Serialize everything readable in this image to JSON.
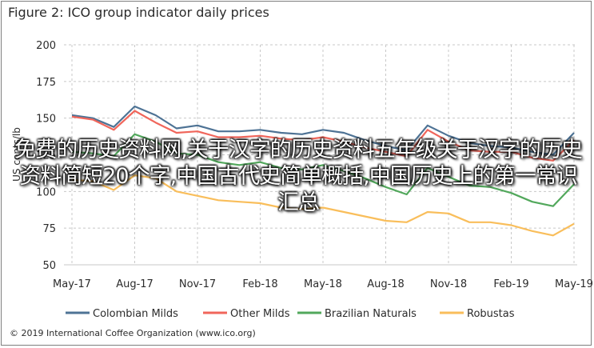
{
  "title": "Figure 2: ICO group indicator daily prices",
  "copyright": "© 2019 International Coffee Organization (www.ico.org)",
  "watermark_text": "免费的历史资料网,关于汉字的历史资料五年级关于汉字的历史资料简短20个字,中国古代史简单概括,中国历史上的第一常识汇总",
  "chart_data": {
    "type": "line",
    "ylabel": "US cents/lb",
    "ylim": [
      50,
      200
    ],
    "yticks": [
      50,
      75,
      100,
      125,
      150,
      175,
      200
    ],
    "x_labels": [
      "May-17",
      "Aug-17",
      "Nov-17",
      "Feb-18",
      "May-18",
      "Aug-18",
      "Nov-18",
      "Feb-19",
      "May-19"
    ],
    "grid": true,
    "legend_position": "bottom",
    "x": [
      "May-17",
      "Jun-17",
      "Jul-17",
      "Aug-17",
      "Sep-17",
      "Oct-17",
      "Nov-17",
      "Dec-17",
      "Jan-18",
      "Feb-18",
      "Mar-18",
      "Apr-18",
      "May-18",
      "Jun-18",
      "Jul-18",
      "Aug-18",
      "Sep-18",
      "Oct-18",
      "Nov-18",
      "Dec-18",
      "Jan-19",
      "Feb-19",
      "Mar-19",
      "Apr-19",
      "May-19"
    ],
    "series": [
      {
        "name": "Colombian Milds",
        "color": "#4e7395",
        "values": [
          152,
          150,
          144,
          158,
          152,
          143,
          145,
          141,
          141,
          142,
          140,
          139,
          142,
          140,
          135,
          131,
          128,
          145,
          138,
          133,
          131,
          130,
          127,
          125,
          140
        ]
      },
      {
        "name": "Other Milds",
        "color": "#f0665b",
        "values": [
          151,
          149,
          142,
          155,
          147,
          140,
          141,
          137,
          137,
          138,
          136,
          135,
          137,
          134,
          130,
          127,
          124,
          142,
          134,
          128,
          127,
          127,
          123,
          121,
          135
        ]
      },
      {
        "name": "Brazilian Naturals",
        "color": "#52a85c",
        "values": [
          127,
          126,
          124,
          139,
          134,
          126,
          125,
          120,
          118,
          120,
          116,
          115,
          118,
          114,
          109,
          103,
          98,
          116,
          110,
          104,
          103,
          99,
          93,
          90,
          105
        ]
      },
      {
        "name": "Robustas",
        "color": "#f9be5b",
        "values": [
          108,
          107,
          101,
          111,
          109,
          100,
          97,
          94,
          93,
          92,
          89,
          88,
          89,
          86,
          83,
          80,
          79,
          86,
          85,
          79,
          79,
          77,
          73,
          70,
          78
        ]
      }
    ]
  }
}
